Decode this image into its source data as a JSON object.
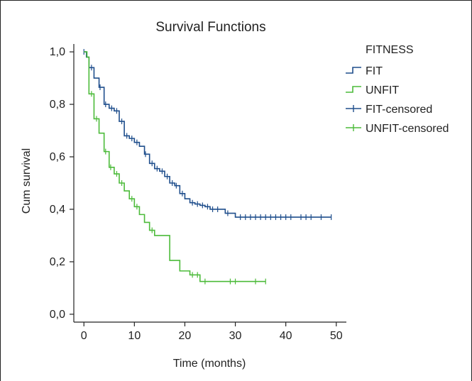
{
  "chart_data": {
    "type": "line",
    "title": "Survival Functions",
    "xlabel": "Time (months)",
    "ylabel": "Cum survival",
    "xlim": [
      -2,
      52
    ],
    "ylim": [
      -0.03,
      1.03
    ],
    "xticks": [
      {
        "value": 0,
        "label": "0"
      },
      {
        "value": 10,
        "label": "10"
      },
      {
        "value": 20,
        "label": "20"
      },
      {
        "value": 30,
        "label": "30"
      },
      {
        "value": 40,
        "label": "40"
      },
      {
        "value": 50,
        "label": "50"
      }
    ],
    "yticks": [
      {
        "value": 0.0,
        "label": "0,0"
      },
      {
        "value": 0.2,
        "label": "0,2"
      },
      {
        "value": 0.4,
        "label": "0,4"
      },
      {
        "value": 0.6,
        "label": "0,6"
      },
      {
        "value": 0.8,
        "label": "0,8"
      },
      {
        "value": 1.0,
        "label": "1,0"
      }
    ],
    "legend": {
      "title": "FITNESS",
      "position": "top-right",
      "entries": [
        {
          "label": "FIT",
          "kind": "line",
          "color": "#1f4e8c"
        },
        {
          "label": "UNFIT",
          "kind": "line",
          "color": "#4cbb3a"
        },
        {
          "label": "FIT-censored",
          "kind": "censor",
          "color": "#1f4e8c"
        },
        {
          "label": "UNFIT-censored",
          "kind": "censor",
          "color": "#4cbb3a"
        }
      ]
    },
    "series": [
      {
        "name": "FIT",
        "color": "#1f4e8c",
        "steps": [
          [
            0,
            1.0
          ],
          [
            0.5,
            0.98
          ],
          [
            1,
            0.94
          ],
          [
            2,
            0.9
          ],
          [
            3,
            0.865
          ],
          [
            4,
            0.8
          ],
          [
            5,
            0.785
          ],
          [
            6,
            0.775
          ],
          [
            7,
            0.735
          ],
          [
            8,
            0.68
          ],
          [
            9,
            0.67
          ],
          [
            10,
            0.655
          ],
          [
            11,
            0.64
          ],
          [
            12,
            0.61
          ],
          [
            13,
            0.575
          ],
          [
            14,
            0.555
          ],
          [
            15,
            0.545
          ],
          [
            16,
            0.525
          ],
          [
            17,
            0.5
          ],
          [
            18,
            0.49
          ],
          [
            19,
            0.46
          ],
          [
            20,
            0.44
          ],
          [
            21,
            0.425
          ],
          [
            22,
            0.42
          ],
          [
            23,
            0.415
          ],
          [
            24,
            0.41
          ],
          [
            25,
            0.4
          ],
          [
            28,
            0.385
          ],
          [
            30,
            0.37
          ],
          [
            49,
            0.37
          ]
        ],
        "censored": [
          [
            0,
            1.0
          ],
          [
            1.5,
            0.94
          ],
          [
            3.2,
            0.865
          ],
          [
            4.3,
            0.8
          ],
          [
            5.5,
            0.785
          ],
          [
            6.5,
            0.775
          ],
          [
            7.5,
            0.735
          ],
          [
            8.5,
            0.68
          ],
          [
            9.5,
            0.67
          ],
          [
            10.5,
            0.655
          ],
          [
            12.2,
            0.61
          ],
          [
            13.5,
            0.575
          ],
          [
            14.5,
            0.555
          ],
          [
            15.5,
            0.545
          ],
          [
            16.5,
            0.525
          ],
          [
            17.5,
            0.5
          ],
          [
            18.3,
            0.49
          ],
          [
            19.5,
            0.46
          ],
          [
            21.5,
            0.425
          ],
          [
            22.5,
            0.42
          ],
          [
            23.5,
            0.415
          ],
          [
            24.5,
            0.41
          ],
          [
            25.5,
            0.4
          ],
          [
            26.5,
            0.4
          ],
          [
            28.5,
            0.385
          ],
          [
            31,
            0.37
          ],
          [
            32,
            0.37
          ],
          [
            33,
            0.37
          ],
          [
            34,
            0.37
          ],
          [
            35,
            0.37
          ],
          [
            36,
            0.37
          ],
          [
            37,
            0.37
          ],
          [
            38,
            0.37
          ],
          [
            39,
            0.37
          ],
          [
            40,
            0.37
          ],
          [
            41,
            0.37
          ],
          [
            43,
            0.37
          ],
          [
            44,
            0.37
          ],
          [
            45,
            0.37
          ],
          [
            47,
            0.37
          ],
          [
            49,
            0.37
          ]
        ]
      },
      {
        "name": "UNFIT",
        "color": "#4cbb3a",
        "steps": [
          [
            0,
            1.0
          ],
          [
            0.6,
            0.98
          ],
          [
            1,
            0.84
          ],
          [
            2,
            0.745
          ],
          [
            3,
            0.69
          ],
          [
            4,
            0.62
          ],
          [
            5,
            0.56
          ],
          [
            6,
            0.535
          ],
          [
            7,
            0.5
          ],
          [
            8,
            0.47
          ],
          [
            9,
            0.44
          ],
          [
            10,
            0.41
          ],
          [
            11,
            0.38
          ],
          [
            12,
            0.35
          ],
          [
            13,
            0.32
          ],
          [
            14,
            0.3
          ],
          [
            17,
            0.205
          ],
          [
            19,
            0.165
          ],
          [
            21,
            0.15
          ],
          [
            23,
            0.125
          ],
          [
            36,
            0.125
          ]
        ],
        "censored": [
          [
            1.5,
            0.84
          ],
          [
            2.5,
            0.745
          ],
          [
            4.3,
            0.62
          ],
          [
            5.3,
            0.56
          ],
          [
            6.5,
            0.535
          ],
          [
            7.5,
            0.5
          ],
          [
            9.5,
            0.44
          ],
          [
            10.5,
            0.41
          ],
          [
            13.5,
            0.32
          ],
          [
            21.5,
            0.15
          ],
          [
            22.5,
            0.15
          ],
          [
            24,
            0.125
          ],
          [
            29,
            0.125
          ],
          [
            30,
            0.125
          ],
          [
            34,
            0.125
          ],
          [
            36,
            0.125
          ]
        ]
      }
    ]
  }
}
